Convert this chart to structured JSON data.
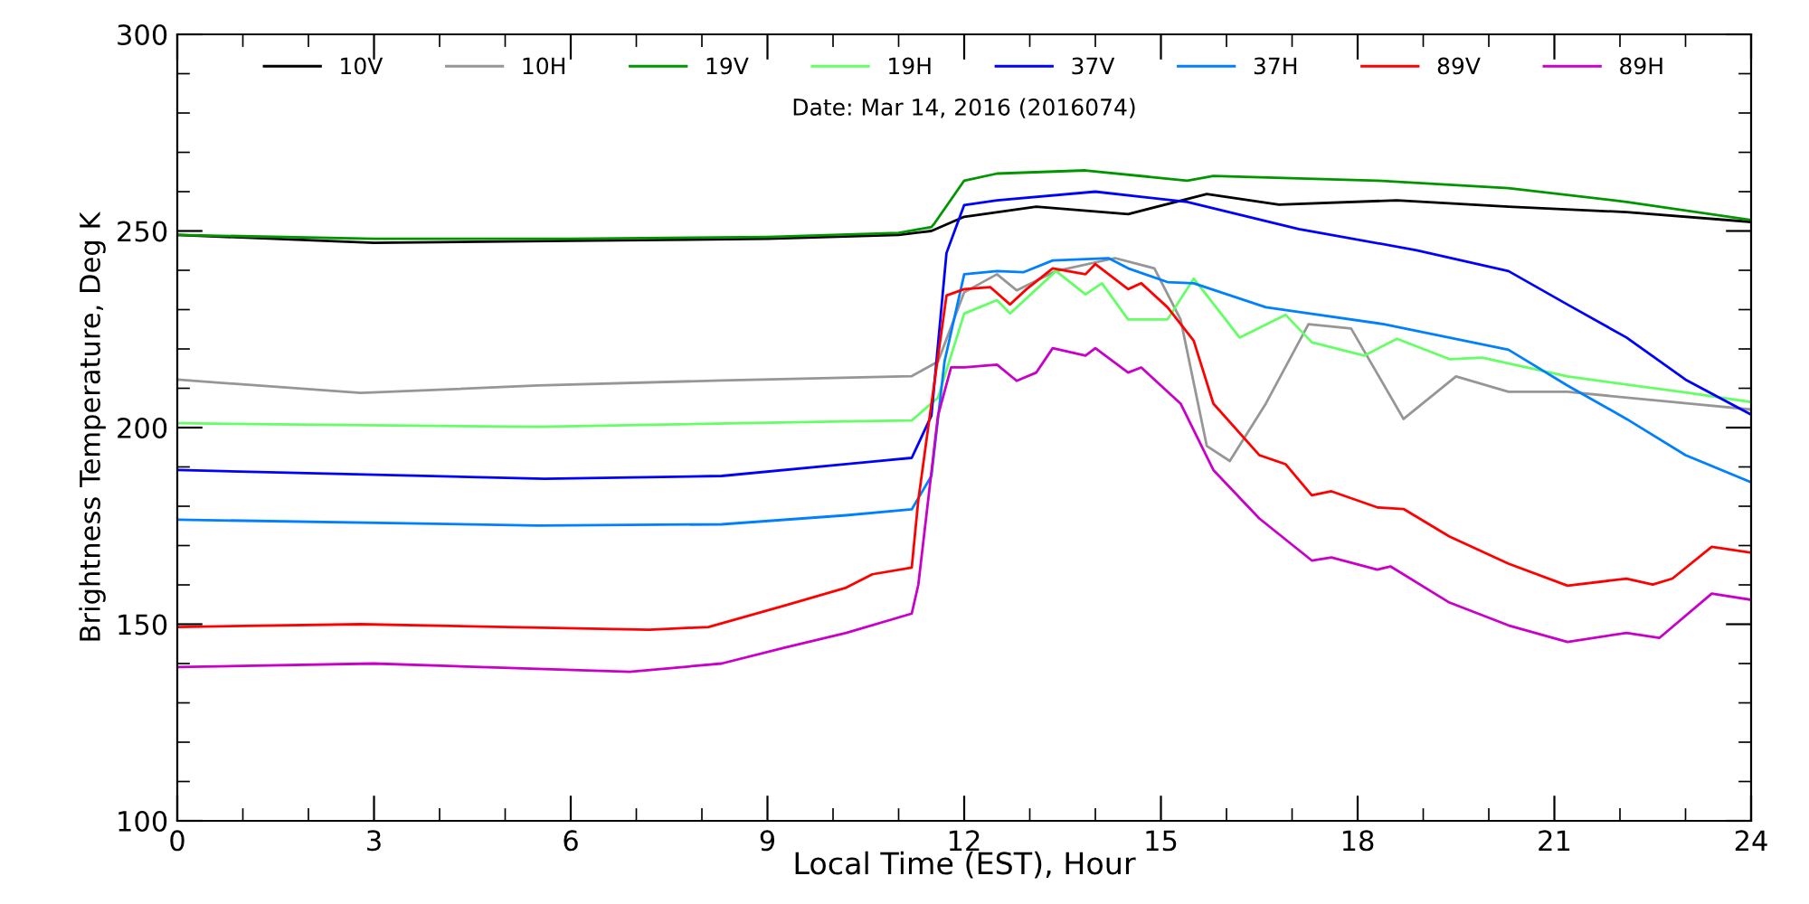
{
  "chart_data": {
    "type": "line",
    "subtitle": "Date: Mar 14, 2016 (2016074)",
    "xlabel": "Local Time (EST), Hour",
    "ylabel": "Brightness Temperature, Deg K",
    "xlim": [
      0,
      24
    ],
    "xticks": [
      0,
      3,
      6,
      9,
      12,
      15,
      18,
      21,
      24
    ],
    "ylim": [
      100,
      300
    ],
    "yticks": [
      100,
      150,
      200,
      250,
      300
    ],
    "grid": false,
    "legend": "top",
    "marker": "none",
    "line_style": "solid",
    "series": [
      {
        "name": "10V",
        "color": "#000000",
        "x": [
          0,
          3,
          6,
          9,
          11,
          11.5,
          12,
          13.1,
          14.5,
          15.7,
          16.8,
          18.6,
          20.3,
          22.1,
          24
        ],
        "values": [
          249,
          247,
          247.5,
          248,
          249,
          250,
          253.6,
          256.2,
          254.3,
          259.4,
          256.7,
          257.8,
          256.2,
          254.8,
          252.3
        ]
      },
      {
        "name": "10H",
        "color": "#969696",
        "x": [
          0,
          2.8,
          5.5,
          8.3,
          11.2,
          11.6,
          12,
          12.5,
          12.8,
          13.4,
          14.3,
          14.9,
          15.3,
          15.7,
          16.05,
          16.6,
          17.25,
          17.9,
          18.3,
          18.7,
          19.5,
          20.3,
          21.2,
          23.05,
          24
        ],
        "values": [
          212.2,
          208.8,
          210.7,
          212,
          213.1,
          216.8,
          234.4,
          239,
          234.9,
          239.8,
          243.1,
          240.5,
          227.5,
          195.3,
          191.5,
          206.1,
          226.3,
          225.2,
          213.7,
          202.2,
          213,
          209.1,
          209.1,
          206.1,
          204.6
        ]
      },
      {
        "name": "19V",
        "color": "#009600",
        "x": [
          0,
          3,
          6,
          9,
          11,
          11.5,
          11.55,
          12,
          12.5,
          13.85,
          15.4,
          15.8,
          18.3,
          20.3,
          22.1,
          24
        ],
        "values": [
          249,
          248,
          248,
          248.5,
          249.5,
          251,
          252,
          262.8,
          264.6,
          265.4,
          262.8,
          264,
          262.8,
          260.9,
          257.4,
          252.8
        ]
      },
      {
        "name": "19H",
        "color": "#64ff64",
        "x": [
          0,
          5.5,
          10.2,
          11.2,
          11.6,
          12,
          12.5,
          12.7,
          13.4,
          13.85,
          14.1,
          14.5,
          15.1,
          15.5,
          16.2,
          16.9,
          17.3,
          18.1,
          18.6,
          19.4,
          19.9,
          21.2,
          23.05,
          24
        ],
        "values": [
          201.1,
          200.2,
          201.6,
          201.8,
          207.6,
          229,
          232.4,
          229,
          239.8,
          233.9,
          236.7,
          227.5,
          227.5,
          237.9,
          222.9,
          228.7,
          221.7,
          218.3,
          222.6,
          217.4,
          217.8,
          213,
          208.8,
          206.5
        ]
      },
      {
        "name": "37V",
        "color": "#0000ff",
        "x": [
          0,
          5.6,
          8.3,
          10.2,
          11.2,
          11.5,
          11.73,
          12,
          12.5,
          14,
          15.4,
          17.1,
          18.9,
          20.3,
          21.2,
          22.1,
          23,
          24
        ],
        "values": [
          189.2,
          187,
          187.7,
          190.7,
          192.3,
          203,
          244.4,
          256.6,
          257.8,
          260,
          257.4,
          250.5,
          245.1,
          239.8,
          231.3,
          222.9,
          212.2,
          203.3
        ]
      },
      {
        "name": "37H",
        "color": "#0080ff",
        "x": [
          0,
          5.5,
          8.3,
          10.2,
          11.2,
          11.5,
          11.7,
          12,
          12.5,
          12.9,
          13.35,
          14.2,
          14.5,
          15.1,
          15.5,
          16.6,
          18.4,
          20.3,
          21.2,
          22.1,
          23,
          24
        ],
        "values": [
          176.6,
          175.1,
          175.4,
          177.7,
          179.2,
          187.7,
          216.8,
          239,
          239.8,
          239.5,
          242.5,
          243.1,
          240.5,
          237,
          236.7,
          230.6,
          226.3,
          219.8,
          210.7,
          202.2,
          193,
          186.1
        ]
      },
      {
        "name": "89V",
        "color": "#ff0000",
        "x": [
          0,
          2.8,
          7.2,
          8.1,
          9.25,
          10.2,
          10.6,
          11.2,
          11.3,
          11.45,
          11.73,
          12,
          12.4,
          12.7,
          12.95,
          13.35,
          13.85,
          14,
          14.5,
          14.7,
          15.1,
          15.5,
          15.8,
          16.5,
          16.9,
          17.3,
          17.6,
          18.3,
          18.7,
          19.4,
          20.3,
          21.2,
          22.1,
          22.5,
          22.8,
          23.4,
          24
        ],
        "values": [
          149.3,
          150,
          148.6,
          149.3,
          154.7,
          159.3,
          162.7,
          164.4,
          181.5,
          199.9,
          233.6,
          235.2,
          235.7,
          231.3,
          235.2,
          240.5,
          239,
          241.6,
          235.2,
          236.7,
          230.6,
          222.1,
          206.1,
          193,
          190.7,
          182.8,
          183.8,
          179.7,
          179.3,
          172.3,
          165.4,
          159.8,
          161.6,
          160.1,
          161.6,
          169.7,
          168.2
        ]
      },
      {
        "name": "89H",
        "color": "#c800c8",
        "x": [
          0,
          3,
          6.9,
          8.3,
          9.25,
          10.2,
          11.2,
          11.3,
          11.45,
          11.6,
          11.8,
          12,
          12.5,
          12.8,
          13.1,
          13.35,
          13.85,
          14,
          14.5,
          14.7,
          15.3,
          15.8,
          16.5,
          17.3,
          17.6,
          18.3,
          18.5,
          19.4,
          20.3,
          21.2,
          22.1,
          22.6,
          23.4,
          24
        ],
        "values": [
          139.1,
          140,
          137.9,
          140,
          144,
          147.8,
          152.7,
          160,
          181.5,
          203,
          215.3,
          215.3,
          216,
          211.9,
          214,
          220.2,
          218.3,
          220.2,
          214,
          215.3,
          206.1,
          189.2,
          176.9,
          166.2,
          167,
          163.9,
          164.7,
          155.5,
          149.7,
          145.5,
          147.8,
          146.5,
          157.8,
          156.2
        ]
      }
    ]
  }
}
